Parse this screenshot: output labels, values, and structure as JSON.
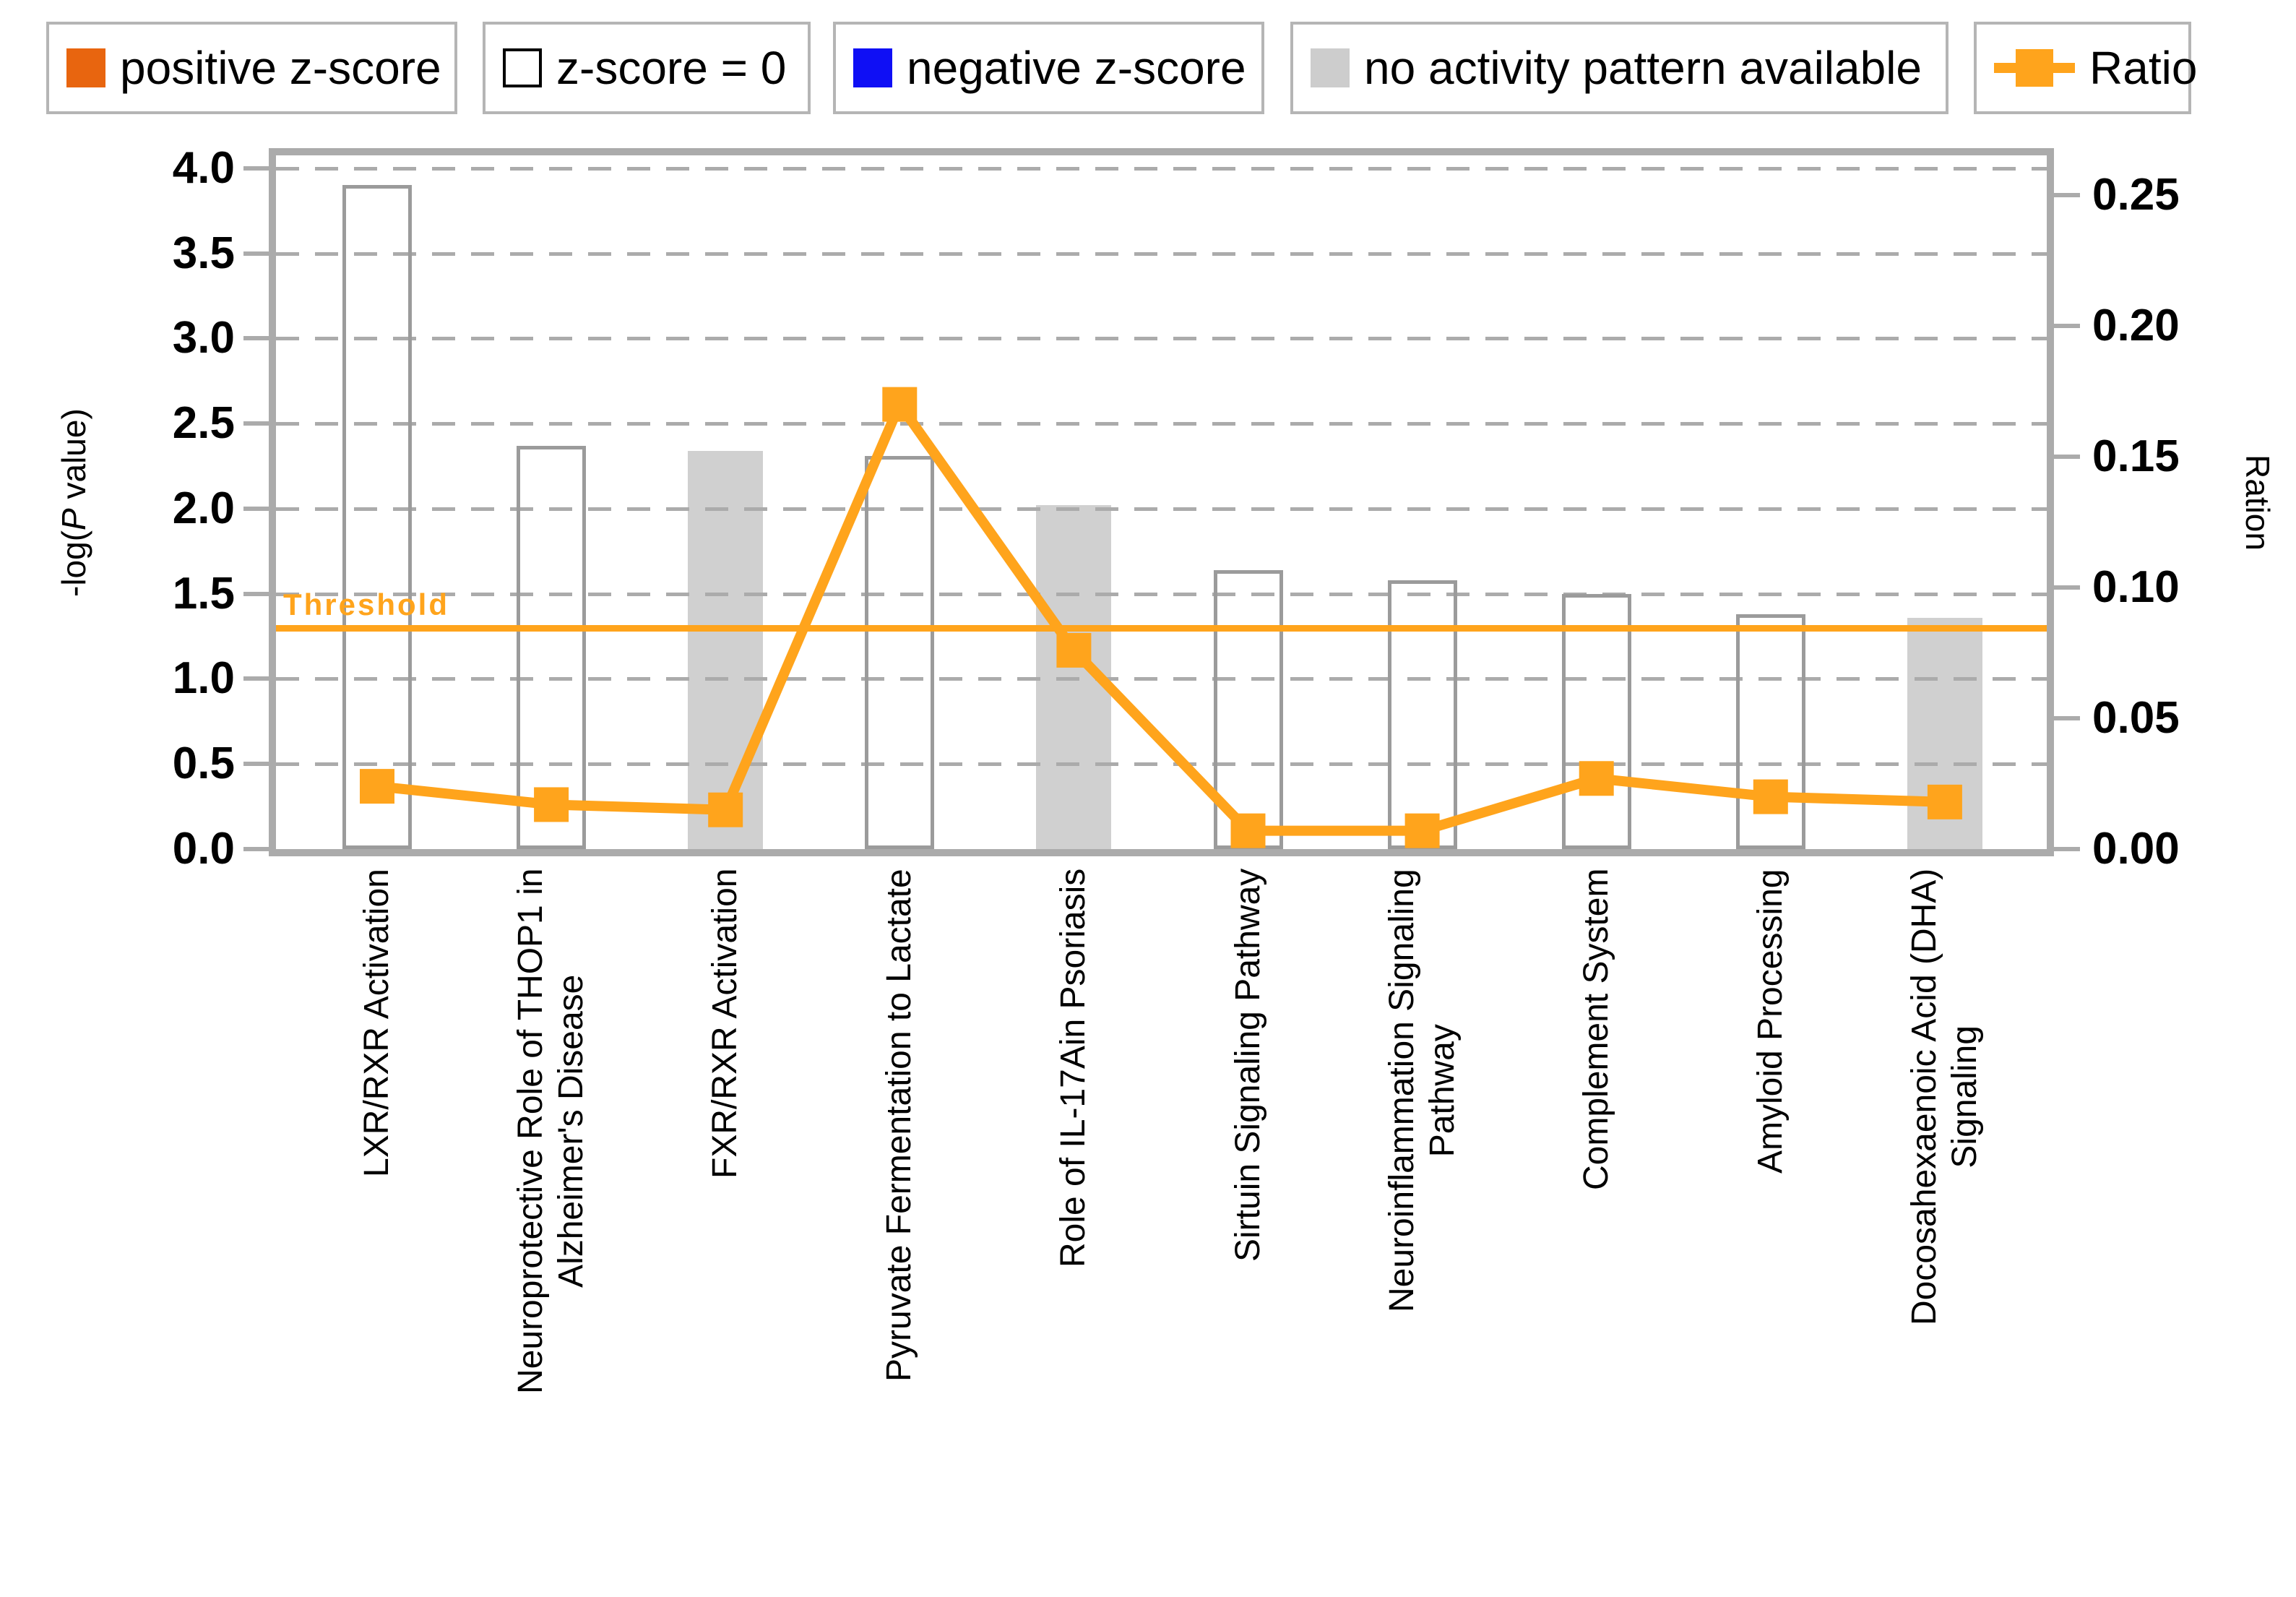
{
  "legend": {
    "items": [
      {
        "label": "positive z-score",
        "swatch": "square",
        "color": "#e8650f",
        "icon": "positive-zscore-swatch"
      },
      {
        "label": "z-score = 0",
        "swatch": "square-outline",
        "color": "#ffffff",
        "icon": "zscore-zero-swatch"
      },
      {
        "label": "negative z-score",
        "swatch": "square",
        "color": "#0f0ff5",
        "icon": "negative-zscore-swatch"
      },
      {
        "label": "no activity pattern available",
        "swatch": "square",
        "color": "#cdcdcd",
        "icon": "no-activity-swatch"
      },
      {
        "label": "Ratio",
        "swatch": "line-marker",
        "color": "#ffa41c",
        "icon": "ratio-line-swatch"
      }
    ]
  },
  "chart_data": {
    "type": "bar",
    "subtype": "dual-axis bar + line",
    "grid": "horizontal-dashed",
    "legend_position": "top",
    "categories": [
      [
        "LXR/RXR Activation"
      ],
      [
        "Neuroprotective Role of THOP1 in",
        "Alzheimer's Disease"
      ],
      [
        "FXR/RXR Activation"
      ],
      [
        "Pyruvate Fermentation to Lactate"
      ],
      [
        "Role of IL-17Ain Psoriasis"
      ],
      [
        "Sirtuin Signaling Pathway"
      ],
      [
        "Neuroinflammation Signaling",
        "Pathway"
      ],
      [
        "Complement System"
      ],
      [
        "Amyloid Processing"
      ],
      [
        "Docosahexaenoic Acid (DHA)",
        "Signaling"
      ]
    ],
    "series": [
      {
        "name": "-log(P value) bars",
        "type": "bar",
        "axis": "left",
        "values": [
          3.9,
          2.37,
          2.34,
          2.31,
          2.02,
          1.64,
          1.58,
          1.5,
          1.38,
          1.36
        ],
        "bar_styles": [
          "z-score-0",
          "z-score-0",
          "no-activity",
          "z-score-0",
          "no-activity",
          "z-score-0",
          "z-score-0",
          "z-score-0",
          "z-score-0",
          "no-activity"
        ]
      },
      {
        "name": "Ratio",
        "type": "line",
        "axis": "right",
        "values": [
          0.024,
          0.017,
          0.015,
          0.17,
          0.076,
          0.007,
          0.007,
          0.027,
          0.02,
          0.018
        ]
      }
    ],
    "threshold": {
      "value": 1.3,
      "axis": "left",
      "label": "Threshold"
    },
    "left_axis": {
      "title_prefix": "-log(",
      "title_italic_part": "P",
      "title_suffix": " value)",
      "ticks": [
        "0.0",
        "0.5",
        "1.0",
        "1.5",
        "2.0",
        "2.5",
        "3.0",
        "3.5",
        "4.0"
      ],
      "min": 0.0,
      "max": 4.0,
      "step": 0.5,
      "value_at_plot_top": 4.076
    },
    "right_axis": {
      "label": "Ration",
      "ticks": [
        "0.00",
        "0.05",
        "0.10",
        "0.15",
        "0.20",
        "0.25"
      ],
      "min": 0.0,
      "max": 0.25,
      "step": 0.05,
      "value_at_plot_top": 0.2652
    },
    "colors": {
      "positive_zscore": "#e8650f",
      "negative_zscore": "#0f0ff5",
      "no_activity_fill": "#d0d0d0",
      "bar_outline": "#9b9b9b",
      "ratio_line": "#ffa41c",
      "threshold": "#ffa41c",
      "axis_frame": "#ababab",
      "grid": "#ababab",
      "text": "#000000"
    }
  }
}
